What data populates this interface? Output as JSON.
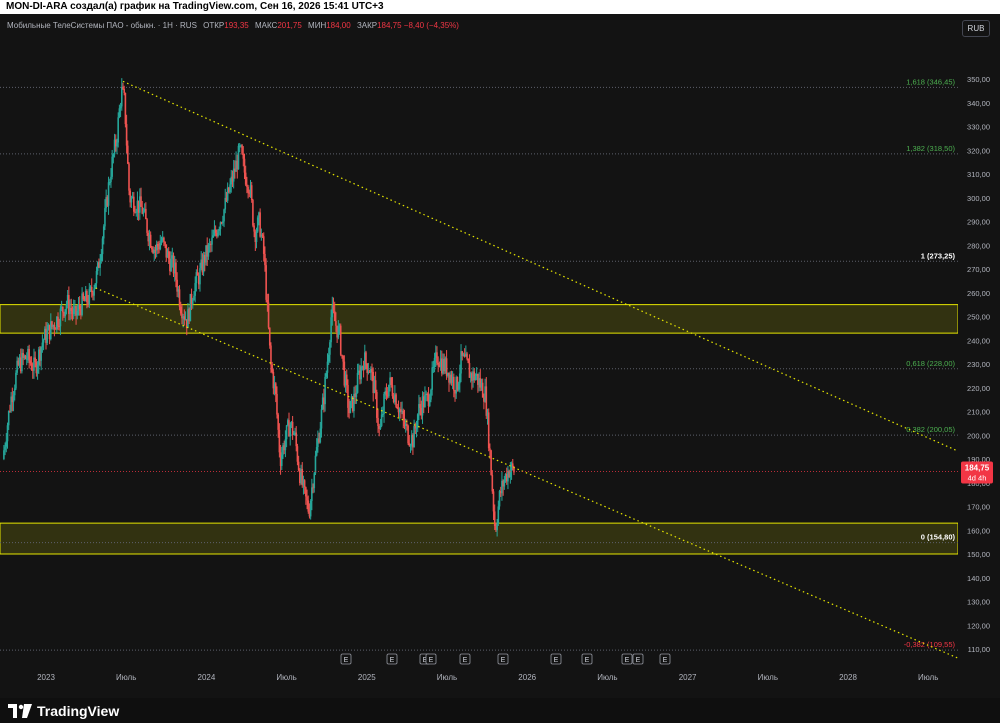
{
  "header": {
    "caption": "MON-DI-ARA создал(а) график на TradingView.com, Сен 16, 2026 15:41 UTC+3"
  },
  "legend": {
    "instrument": "Мобильные ТелеСистемы ПАО - обыкн. · 1Н · RUS",
    "open_label": "ОТКР",
    "open_value": "193,35",
    "high_label": "МАКС",
    "high_value": "201,75",
    "low_label": "МИН",
    "low_value": "184,00",
    "close_label": "ЗАКР",
    "close_value": "184,75 −8,40 (−4,35%)"
  },
  "currency_button": "RUB",
  "price_tag": {
    "price": "184,75",
    "countdown": "4d 4h",
    "color": "#f23645"
  },
  "branding": {
    "logo_text": "TradingView"
  },
  "colors": {
    "background": "#131313",
    "up": "#26a69a",
    "down": "#ef5350",
    "zone_fill": "#3d3d12",
    "zone_border": "#e6e600",
    "trendline": "#e6e600",
    "fib_label_green": "#4caf50",
    "axis_text": "#b2b5be"
  },
  "events": [
    "E",
    "E",
    "E",
    "E",
    "E",
    "E",
    "E",
    "E",
    "E",
    "E",
    "E"
  ],
  "chart_data": {
    "type": "candlestick",
    "timeframe": "1H",
    "currency": "RUB",
    "ylim": [
      105,
      355
    ],
    "y_ticks": [
      "110,00",
      "120,00",
      "130,00",
      "140,00",
      "150,00",
      "160,00",
      "170,00",
      "180,00",
      "190,00",
      "200,00",
      "210,00",
      "220,00",
      "230,00",
      "240,00",
      "250,00",
      "260,00",
      "270,00",
      "280,00",
      "290,00",
      "300,00",
      "310,00",
      "320,00",
      "330,00",
      "340,00",
      "350,00"
    ],
    "x_ticks": [
      "2023",
      "Июль",
      "2024",
      "Июль",
      "2025",
      "Июль",
      "2026",
      "Июль",
      "2027",
      "Июль",
      "2028",
      "Июль"
    ],
    "x_tick_years": [
      2023.0,
      2023.5,
      2024.0,
      2024.5,
      2025.0,
      2025.5,
      2026.0,
      2026.5,
      2027.0,
      2027.5,
      2028.0,
      2028.5
    ],
    "xlim": [
      2022.73,
      2028.93
    ],
    "fib_levels": [
      {
        "label": "1,618 (346,45)",
        "value": 346.45,
        "color": "#4caf50"
      },
      {
        "label": "1,382 (318,50)",
        "value": 318.5,
        "color": "#4caf50"
      },
      {
        "label": "1 (273,25)",
        "value": 273.25,
        "color": "#ffffff"
      },
      {
        "label": "0,618 (228,00)",
        "value": 228.0,
        "color": "#4caf50"
      },
      {
        "label": "0,382 (200,05)",
        "value": 200.05,
        "color": "#4caf50"
      },
      {
        "label": "0 (154,80)",
        "value": 154.8,
        "color": "#ffffff"
      },
      {
        "label": "-0,382 (109,55)",
        "value": 109.55,
        "color": "#f23645"
      }
    ],
    "zones": [
      {
        "top": 255.0,
        "bottom": 243.0
      },
      {
        "top": 163.0,
        "bottom": 150.0
      }
    ],
    "trendlines": [
      {
        "from": [
          2023.48,
          349.0
        ],
        "to": [
          2028.83,
          189.0
        ]
      },
      {
        "from": [
          2023.31,
          262.0
        ],
        "to": [
          2028.76,
          104.0
        ]
      }
    ],
    "price_path": [
      [
        2022.73,
        190
      ],
      [
        2022.78,
        215
      ],
      [
        2022.83,
        230
      ],
      [
        2022.88,
        233
      ],
      [
        2022.93,
        228
      ],
      [
        2022.98,
        240
      ],
      [
        2023.03,
        245
      ],
      [
        2023.08,
        250
      ],
      [
        2023.13,
        256
      ],
      [
        2023.18,
        250
      ],
      [
        2023.22,
        255
      ],
      [
        2023.27,
        258
      ],
      [
        2023.32,
        268
      ],
      [
        2023.36,
        288
      ],
      [
        2023.4,
        310
      ],
      [
        2023.44,
        325
      ],
      [
        2023.47,
        345
      ],
      [
        2023.49,
        340
      ],
      [
        2023.52,
        300
      ],
      [
        2023.56,
        298
      ],
      [
        2023.6,
        295
      ],
      [
        2023.64,
        285
      ],
      [
        2023.68,
        278
      ],
      [
        2023.72,
        282
      ],
      [
        2023.76,
        275
      ],
      [
        2023.8,
        270
      ],
      [
        2023.84,
        255
      ],
      [
        2023.88,
        248
      ],
      [
        2023.92,
        262
      ],
      [
        2023.96,
        268
      ],
      [
        2023.99,
        275
      ],
      [
        2024.03,
        280
      ],
      [
        2024.07,
        288
      ],
      [
        2024.11,
        295
      ],
      [
        2024.15,
        305
      ],
      [
        2024.19,
        315
      ],
      [
        2024.21,
        320
      ],
      [
        2024.24,
        310
      ],
      [
        2024.27,
        305
      ],
      [
        2024.3,
        285
      ],
      [
        2024.33,
        290
      ],
      [
        2024.36,
        275
      ],
      [
        2024.38,
        252
      ],
      [
        2024.4,
        230
      ],
      [
        2024.43,
        218
      ],
      [
        2024.46,
        190
      ],
      [
        2024.49,
        198
      ],
      [
        2024.52,
        205
      ],
      [
        2024.55,
        200
      ],
      [
        2024.58,
        185
      ],
      [
        2024.61,
        175
      ],
      [
        2024.64,
        168
      ],
      [
        2024.67,
        185
      ],
      [
        2024.7,
        200
      ],
      [
        2024.73,
        215
      ],
      [
        2024.76,
        235
      ],
      [
        2024.78,
        252
      ],
      [
        2024.8,
        248
      ],
      [
        2024.83,
        242
      ],
      [
        2024.86,
        225
      ],
      [
        2024.89,
        210
      ],
      [
        2024.92,
        215
      ],
      [
        2024.95,
        225
      ],
      [
        2024.98,
        232
      ],
      [
        2025.02,
        228
      ],
      [
        2025.05,
        218
      ],
      [
        2025.08,
        200
      ],
      [
        2025.11,
        215
      ],
      [
        2025.14,
        222
      ],
      [
        2025.17,
        218
      ],
      [
        2025.2,
        212
      ],
      [
        2025.23,
        205
      ],
      [
        2025.26,
        200
      ],
      [
        2025.29,
        198
      ],
      [
        2025.32,
        210
      ],
      [
        2025.35,
        214
      ],
      [
        2025.38,
        215
      ],
      [
        2025.41,
        225
      ],
      [
        2025.44,
        234
      ],
      [
        2025.47,
        230
      ],
      [
        2025.5,
        228
      ],
      [
        2025.53,
        224
      ],
      [
        2025.56,
        220
      ],
      [
        2025.59,
        232
      ],
      [
        2025.62,
        230
      ],
      [
        2025.65,
        225
      ],
      [
        2025.68,
        225
      ],
      [
        2025.71,
        221
      ],
      [
        2025.74,
        217
      ],
      [
        2025.77,
        190
      ],
      [
        2025.8,
        160
      ],
      [
        2025.83,
        175
      ],
      [
        2025.86,
        182
      ],
      [
        2025.89,
        186
      ],
      [
        2025.92,
        185
      ]
    ]
  }
}
